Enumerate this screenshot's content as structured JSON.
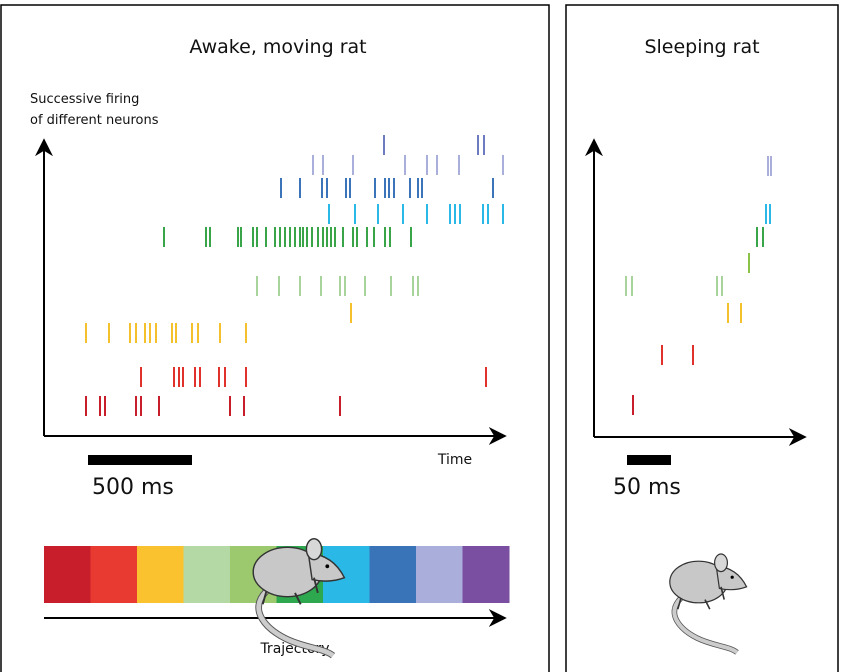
{
  "panels": [
    {
      "title": "Awake, moving rat",
      "y_axis_label": [
        "Successive firing",
        "of different neurons"
      ],
      "x_axis_label": "Time",
      "scale_bar": "500 ms",
      "trajectory_label": "Trajectory"
    },
    {
      "title": "Sleeping rat",
      "scale_bar": "50 ms"
    }
  ]
}
